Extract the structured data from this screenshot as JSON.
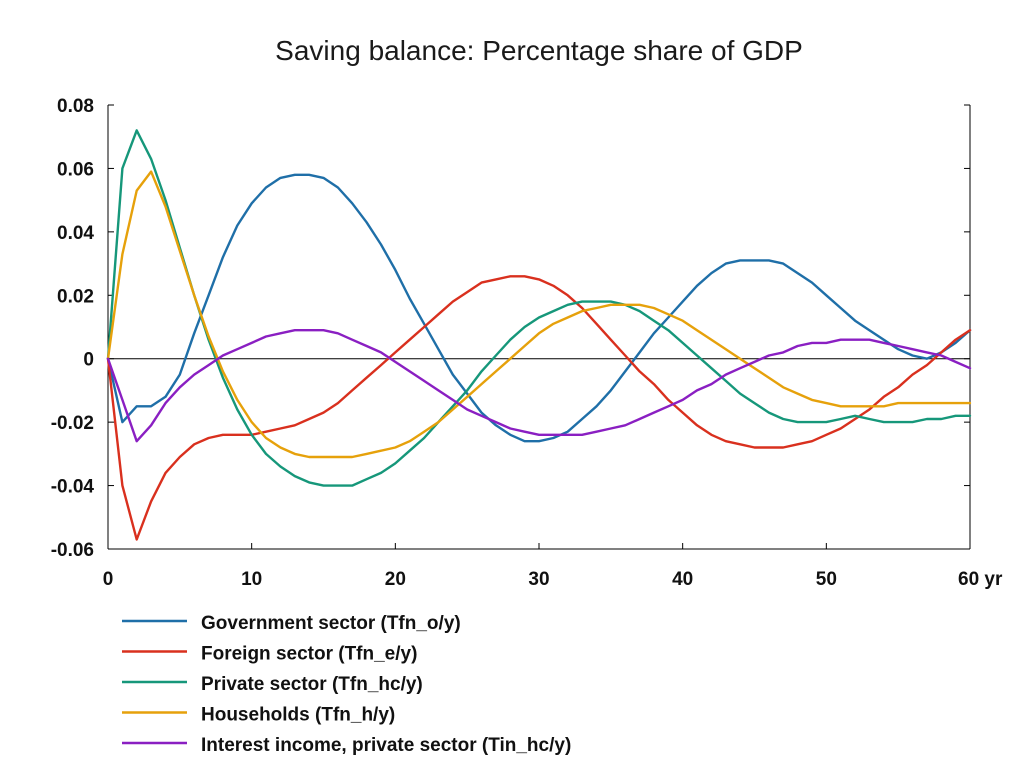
{
  "chart_data": {
    "type": "line",
    "title": "Saving balance: Percentage share of GDP",
    "xlabel": "",
    "ylabel": "",
    "x_unit": "yr",
    "xlim": [
      0,
      60
    ],
    "ylim": [
      -0.06,
      0.08
    ],
    "x_ticks": [
      0,
      10,
      20,
      30,
      40,
      50,
      60
    ],
    "x_tick_labels": [
      "0",
      "10",
      "20",
      "30",
      "40",
      "50",
      "60 yr"
    ],
    "y_ticks": [
      0.08,
      0.06,
      0.04,
      0.02,
      0,
      -0.02,
      -0.04,
      -0.06
    ],
    "y_tick_labels": [
      "0.08",
      "0.06",
      "0.04",
      "0.02",
      "0",
      "-0.02",
      "-0.04",
      "-0.06"
    ],
    "zero_line": true,
    "grid": false,
    "legend_position": "bottom",
    "x": [
      0,
      1,
      2,
      3,
      4,
      5,
      6,
      7,
      8,
      9,
      10,
      11,
      12,
      13,
      14,
      15,
      16,
      17,
      18,
      19,
      20,
      21,
      22,
      23,
      24,
      25,
      26,
      27,
      28,
      29,
      30,
      31,
      32,
      33,
      34,
      35,
      36,
      37,
      38,
      39,
      40,
      41,
      42,
      43,
      44,
      45,
      46,
      47,
      48,
      49,
      50,
      51,
      52,
      53,
      54,
      55,
      56,
      57,
      58,
      59,
      60
    ],
    "series": [
      {
        "name": "Government sector (Tfn_o/y)",
        "color": "#1f6fa8",
        "values": [
          0,
          -0.02,
          -0.015,
          -0.015,
          -0.012,
          -0.005,
          0.008,
          0.02,
          0.032,
          0.042,
          0.049,
          0.054,
          0.057,
          0.058,
          0.058,
          0.057,
          0.054,
          0.049,
          0.043,
          0.036,
          0.028,
          0.019,
          0.011,
          0.003,
          -0.005,
          -0.011,
          -0.017,
          -0.021,
          -0.024,
          -0.026,
          -0.026,
          -0.025,
          -0.023,
          -0.019,
          -0.015,
          -0.01,
          -0.004,
          0.002,
          0.008,
          0.013,
          0.018,
          0.023,
          0.027,
          0.03,
          0.031,
          0.031,
          0.031,
          0.03,
          0.027,
          0.024,
          0.02,
          0.016,
          0.012,
          0.009,
          0.006,
          0.003,
          0.001,
          0.0,
          0.002,
          0.005,
          0.009
        ]
      },
      {
        "name": "Foreign sector (Tfn_e/y)",
        "color": "#d9301e",
        "values": [
          0,
          -0.04,
          -0.057,
          -0.045,
          -0.036,
          -0.031,
          -0.027,
          -0.025,
          -0.024,
          -0.024,
          -0.024,
          -0.023,
          -0.022,
          -0.021,
          -0.019,
          -0.017,
          -0.014,
          -0.01,
          -0.006,
          -0.002,
          0.002,
          0.006,
          0.01,
          0.014,
          0.018,
          0.021,
          0.024,
          0.025,
          0.026,
          0.026,
          0.025,
          0.023,
          0.02,
          0.016,
          0.011,
          0.006,
          0.001,
          -0.004,
          -0.008,
          -0.013,
          -0.017,
          -0.021,
          -0.024,
          -0.026,
          -0.027,
          -0.028,
          -0.028,
          -0.028,
          -0.027,
          -0.026,
          -0.024,
          -0.022,
          -0.019,
          -0.016,
          -0.012,
          -0.009,
          -0.005,
          -0.002,
          0.002,
          0.006,
          0.009
        ]
      },
      {
        "name": "Private sector (Tfn_hc/y)",
        "color": "#16977a",
        "values": [
          0,
          0.06,
          0.072,
          0.063,
          0.05,
          0.035,
          0.02,
          0.006,
          -0.006,
          -0.016,
          -0.024,
          -0.03,
          -0.034,
          -0.037,
          -0.039,
          -0.04,
          -0.04,
          -0.04,
          -0.038,
          -0.036,
          -0.033,
          -0.029,
          -0.025,
          -0.02,
          -0.015,
          -0.01,
          -0.004,
          0.001,
          0.006,
          0.01,
          0.013,
          0.015,
          0.017,
          0.018,
          0.018,
          0.018,
          0.017,
          0.015,
          0.012,
          0.009,
          0.005,
          0.001,
          -0.003,
          -0.007,
          -0.011,
          -0.014,
          -0.017,
          -0.019,
          -0.02,
          -0.02,
          -0.02,
          -0.019,
          -0.018,
          -0.019,
          -0.02,
          -0.02,
          -0.02,
          -0.019,
          -0.019,
          -0.018,
          -0.018
        ]
      },
      {
        "name": "Households (Tfn_h/y)",
        "color": "#e6a10b",
        "values": [
          0,
          0.033,
          0.053,
          0.059,
          0.048,
          0.034,
          0.02,
          0.007,
          -0.004,
          -0.013,
          -0.02,
          -0.025,
          -0.028,
          -0.03,
          -0.031,
          -0.031,
          -0.031,
          -0.031,
          -0.03,
          -0.029,
          -0.028,
          -0.026,
          -0.023,
          -0.02,
          -0.016,
          -0.012,
          -0.008,
          -0.004,
          0.0,
          0.004,
          0.008,
          0.011,
          0.013,
          0.015,
          0.016,
          0.017,
          0.017,
          0.017,
          0.016,
          0.014,
          0.012,
          0.009,
          0.006,
          0.003,
          0.0,
          -0.003,
          -0.006,
          -0.009,
          -0.011,
          -0.013,
          -0.014,
          -0.015,
          -0.015,
          -0.015,
          -0.015,
          -0.014,
          -0.014,
          -0.014,
          -0.014,
          -0.014,
          -0.014
        ]
      },
      {
        "name": "Interest income, private sector (Tin_hc/y)",
        "color": "#8a1fc2",
        "values": [
          0,
          -0.013,
          -0.026,
          -0.021,
          -0.014,
          -0.009,
          -0.005,
          -0.002,
          0.001,
          0.003,
          0.005,
          0.007,
          0.008,
          0.009,
          0.009,
          0.009,
          0.008,
          0.006,
          0.004,
          0.002,
          -0.001,
          -0.004,
          -0.007,
          -0.01,
          -0.013,
          -0.016,
          -0.018,
          -0.02,
          -0.022,
          -0.023,
          -0.024,
          -0.024,
          -0.024,
          -0.024,
          -0.023,
          -0.022,
          -0.021,
          -0.019,
          -0.017,
          -0.015,
          -0.013,
          -0.01,
          -0.008,
          -0.005,
          -0.003,
          -0.001,
          0.001,
          0.002,
          0.004,
          0.005,
          0.005,
          0.006,
          0.006,
          0.006,
          0.005,
          0.004,
          0.003,
          0.002,
          0.001,
          -0.001,
          -0.003
        ]
      }
    ]
  }
}
